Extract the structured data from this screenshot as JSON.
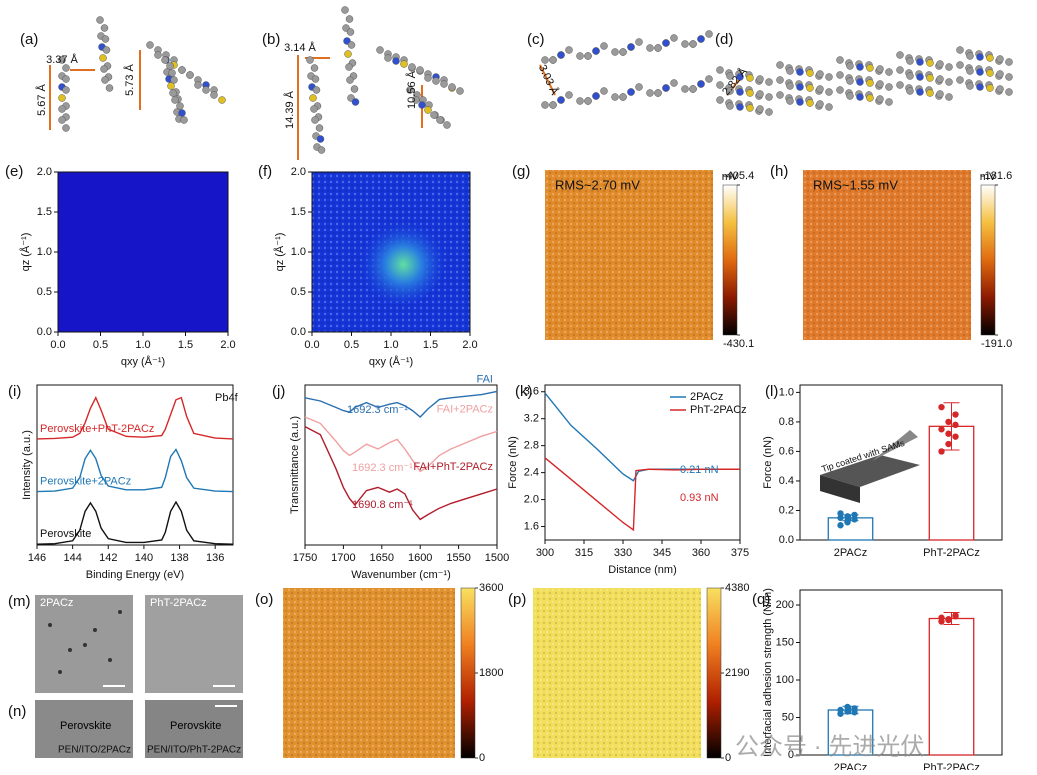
{
  "figure": {
    "labels": {
      "a": "(a)",
      "b": "(b)",
      "c": "(c)",
      "d": "(d)",
      "m": "(m)",
      "n": "(n)"
    },
    "distances": [
      "3.37 Å",
      "5.73 Å",
      "5.67 Å",
      "3.14 Å",
      "14.39 Å",
      "10.56 Å",
      "3.03 Å",
      "2.82 Å"
    ],
    "sem": {
      "top": [
        "2PACz",
        "PhT-2PACz"
      ],
      "cross": [
        "Perovskite",
        "Perovskite"
      ],
      "substrates": [
        "PEN/ITO/2PACz",
        "PEN/ITO/PhT-2PACz"
      ]
    },
    "watermark": "公众号 · 先进光伏"
  },
  "chart_data": [
    {
      "label": "(e)",
      "type": "heatmap",
      "color": "#1616c8",
      "xlabel": "qxy (Å⁻¹)",
      "ylabel": "qz (Å⁻¹)",
      "xlim": [
        0,
        2
      ],
      "ylim": [
        0,
        2
      ],
      "xticks": [
        {
          "value": 0,
          "label": "0.0"
        },
        0.5,
        {
          "value": 1,
          "label": "1.0"
        },
        1.5,
        {
          "value": 2,
          "label": "2.0"
        }
      ],
      "yticks": [
        {
          "value": 0,
          "label": "0.0"
        },
        0.5,
        {
          "value": 1,
          "label": "1.0"
        },
        1.5,
        {
          "value": 2,
          "label": "2.0"
        }
      ]
    },
    {
      "label": "(f)",
      "type": "heatmap",
      "color": "#1434d8",
      "xlabel": "qxy (Å⁻¹)",
      "ylabel": "qz (Å⁻¹)",
      "xlim": [
        0,
        2
      ],
      "ylim": [
        0,
        2
      ],
      "xticks": [
        {
          "value": 0,
          "label": "0.0"
        },
        0.5,
        {
          "value": 1,
          "label": "1.0"
        },
        1.5,
        {
          "value": 2,
          "label": "2.0"
        }
      ],
      "yticks": [
        {
          "value": 0,
          "label": "0.0"
        },
        0.5,
        {
          "value": 1,
          "label": "1.0"
        },
        1.5,
        {
          "value": 2,
          "label": "2.0"
        }
      ]
    },
    {
      "label": "(g)",
      "type": "map",
      "annotation": "RMS~2.70 mV",
      "unit": "mV",
      "color": "#e08a2a",
      "colormap": [
        "#000000",
        "#8b1a00",
        "#e06a10",
        "#f5c040",
        "#ffffff"
      ],
      "clim": [
        -430.1,
        -405.4
      ],
      "cticks": [
        -430.1,
        -405.4
      ]
    },
    {
      "label": "(h)",
      "type": "map",
      "annotation": "RMS~1.55 mV",
      "unit": "mV",
      "color": "#e07a2a",
      "colormap": [
        "#000000",
        "#8b1a00",
        "#e06a10",
        "#f5c040",
        "#ffffff"
      ],
      "clim": [
        -191,
        -181.6
      ],
      "cticks": [
        {
          "value": -191,
          "label": "-191.0"
        },
        -181.6
      ]
    },
    {
      "label": "(i)",
      "type": "line",
      "xlabel": "Binding Energy (eV)",
      "ylabel": "Intensity (a.u.)",
      "xlim": [
        146,
        135
      ],
      "ylim": [
        0,
        3.8
      ],
      "xticks": [
        146,
        144,
        142,
        140,
        138,
        136
      ],
      "annotations": [
        "Pb4f"
      ],
      "x": [
        146,
        145,
        144,
        143.6,
        143.3,
        143,
        142.7,
        142.4,
        142,
        141,
        140,
        139,
        138.8,
        138.5,
        138.2,
        137.9,
        137.6,
        137.2,
        136,
        135
      ],
      "series": [
        {
          "name": "Perovskite+PhT-2PACz",
          "color": "#d62728",
          "values": [
            2.52,
            2.53,
            2.56,
            2.65,
            2.9,
            3.25,
            3.5,
            3.2,
            2.75,
            2.58,
            2.56,
            2.6,
            2.75,
            3.1,
            3.45,
            3.5,
            3.05,
            2.65,
            2.54,
            2.52
          ]
        },
        {
          "name": "Perovskite+2PACz",
          "color": "#1f77b4",
          "values": [
            1.27,
            1.28,
            1.35,
            1.6,
            2.05,
            2.25,
            2.05,
            1.65,
            1.4,
            1.31,
            1.31,
            1.37,
            1.6,
            2.1,
            2.27,
            2.0,
            1.6,
            1.35,
            1.28,
            1.27
          ]
        },
        {
          "name": "Perovskite",
          "color": "#111111",
          "values": [
            0.02,
            0.03,
            0.1,
            0.35,
            0.8,
            1.0,
            0.8,
            0.4,
            0.15,
            0.06,
            0.06,
            0.12,
            0.3,
            0.8,
            1.02,
            0.8,
            0.35,
            0.1,
            0.03,
            0.02
          ]
        }
      ]
    },
    {
      "label": "(j)",
      "type": "line",
      "xlabel": "Wavenumber (cm⁻¹)",
      "ylabel": "Transmittance (a.u.)",
      "xlim": [
        1750,
        1500
      ],
      "ylim": [
        0,
        10
      ],
      "xticks": [
        1750,
        1700,
        1650,
        1600,
        1550,
        1500
      ],
      "annotations": [
        "1692.3 cm⁻¹",
        "1692.3 cm⁻¹",
        "1690.8 cm⁻¹"
      ],
      "x": [
        1750,
        1730,
        1710,
        1700,
        1692,
        1685,
        1670,
        1655,
        1640,
        1630,
        1620,
        1610,
        1600,
        1590,
        1575,
        1560,
        1540,
        1520,
        1500
      ],
      "series": [
        {
          "name": "FAI",
          "color": "#2a6fb0",
          "values": [
            9.2,
            9.0,
            8.6,
            8.4,
            8.3,
            8.6,
            8.9,
            8.6,
            8.8,
            8.9,
            8.7,
            8.4,
            8.0,
            8.5,
            9.1,
            9.2,
            9.3,
            9.4,
            9.6
          ]
        },
        {
          "name": "FAI+2PACz",
          "color": "#f0a0a0",
          "values": [
            8.0,
            7.6,
            6.5,
            5.9,
            5.6,
            5.8,
            6.3,
            6.0,
            6.4,
            6.6,
            6.0,
            5.3,
            4.6,
            4.9,
            5.6,
            6.0,
            6.4,
            6.8,
            7.1
          ]
        },
        {
          "name": "FAI+PhT-2PACz",
          "color": "#b01c2a",
          "values": [
            7.4,
            6.9,
            4.8,
            3.6,
            2.9,
            2.5,
            3.4,
            3.6,
            3.3,
            3.5,
            3.2,
            2.2,
            1.6,
            1.9,
            2.3,
            2.6,
            2.9,
            3.2,
            3.5
          ]
        }
      ]
    },
    {
      "label": "(k)",
      "type": "line",
      "xlabel": "Distance (nm)",
      "ylabel": "Force (nN)",
      "xlim": [
        300,
        375
      ],
      "ylim": [
        1.4,
        3.7
      ],
      "xticks": [
        300,
        315,
        330,
        345,
        360,
        375
      ],
      "yticks": [
        1.6,
        {
          "value": 2,
          "label": "2.0"
        },
        2.4,
        2.8,
        3.2,
        3.6
      ],
      "legend": "upper right",
      "annotations": [
        "0.21 nN",
        "0.93 nN"
      ],
      "series": [
        {
          "name": "2PACz",
          "color": "#1f77b4",
          "x": [
            300,
            310,
            320,
            330,
            334,
            336,
            340,
            350,
            360,
            375
          ],
          "values": [
            3.58,
            3.1,
            2.75,
            2.38,
            2.28,
            2.42,
            2.45,
            2.45,
            2.45,
            2.45
          ]
        },
        {
          "name": "PhT-2PACz",
          "color": "#d62728",
          "x": [
            300,
            310,
            320,
            330,
            334,
            335,
            340,
            350,
            360,
            375
          ],
          "values": [
            2.62,
            2.3,
            1.98,
            1.66,
            1.55,
            2.43,
            2.45,
            2.44,
            2.45,
            2.45
          ]
        }
      ]
    },
    {
      "label": "(l)",
      "type": "bar",
      "ylabel": "Force (nN)",
      "ylim": [
        0,
        1.05
      ],
      "yticks": [
        {
          "value": 0,
          "label": "0.0"
        },
        0.2,
        0.4,
        0.6,
        0.8,
        {
          "value": 1,
          "label": "1.0"
        }
      ],
      "categories": [
        "2PACz",
        "PhT-2PACz"
      ],
      "values": [
        0.15,
        0.77
      ],
      "errors": [
        0.02,
        0.16
      ],
      "colors": [
        "#1f77b4",
        "#d62728"
      ],
      "points": [
        [
          0.1,
          0.12,
          0.14,
          0.15,
          0.16,
          0.17,
          0.18,
          0.13
        ],
        [
          0.6,
          0.65,
          0.7,
          0.75,
          0.8,
          0.85,
          0.9,
          0.72,
          0.78
        ]
      ],
      "annotations": [
        "Tip coated with SAMs"
      ]
    },
    {
      "label": "(o)",
      "type": "map",
      "color": "#e0902c",
      "colormap": [
        "#000000",
        "#b02000",
        "#f08020",
        "#f8e060"
      ],
      "clim": [
        0,
        3600
      ],
      "cticks": [
        0,
        1800,
        3600
      ]
    },
    {
      "label": "(p)",
      "type": "map",
      "color": "#f2de5a",
      "colormap": [
        "#000000",
        "#b02000",
        "#f08020",
        "#f8e060"
      ],
      "clim": [
        0,
        4380
      ],
      "cticks": [
        0,
        2190,
        4380
      ]
    },
    {
      "label": "(q)",
      "type": "bar",
      "ylabel": "Interfacial adhesion strength (N/m)",
      "ylim": [
        0,
        220
      ],
      "yticks": [
        0,
        50,
        100,
        150,
        200
      ],
      "categories": [
        "2PACz",
        "PhT-2PACz"
      ],
      "values": [
        60,
        182
      ],
      "errors": [
        5,
        8
      ],
      "colors": [
        "#1f77b4",
        "#d62728"
      ],
      "points": [
        [
          55,
          58,
          62,
          60,
          64,
          57
        ],
        [
          178,
          180,
          185,
          183,
          181,
          186
        ]
      ]
    }
  ]
}
